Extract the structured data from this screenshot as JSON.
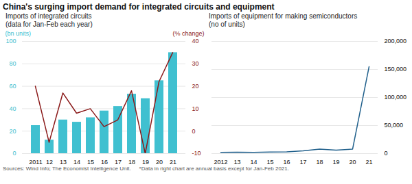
{
  "title": "China's surging import demand for integrated circuits and equipment",
  "annotations": [
    "Sources: Wind Info; The Economist Intelligence Unit.",
    "*Data in right chart are annual basis except for Jan-Feb 2021."
  ],
  "chart_data": [
    {
      "type": "bar",
      "title": "Imports of integrated circuits",
      "subtitle": "(data for Jan-Feb each year)",
      "categories": [
        "2011",
        "12",
        "13",
        "14",
        "15",
        "16",
        "17",
        "18",
        "19",
        "20",
        "21"
      ],
      "series": [
        {
          "type": "bar",
          "color": "#40C0D0",
          "values": [
            25,
            12,
            30,
            28,
            32,
            38,
            42,
            53,
            49,
            65,
            90
          ]
        },
        {
          "type": "line",
          "color": "#8B1A1A",
          "axis": "y2",
          "values": [
            20,
            -5,
            17,
            8,
            10,
            2,
            5,
            18,
            -10,
            22,
            35
          ]
        }
      ],
      "ylabel": "(bn units)",
      "y2label": "(% change)",
      "ylim": [
        0,
        100
      ],
      "yticks": [
        0,
        20,
        40,
        60,
        80,
        100
      ],
      "y2lim": [
        -10,
        40
      ],
      "y2ticks": [
        -10,
        0,
        10,
        20,
        30,
        40
      ],
      "grid": true
    },
    {
      "type": "line",
      "title": "Imports of equipment for making semiconductors",
      "subtitle": "(no of units)",
      "categories": [
        "2012",
        "13",
        "14",
        "15",
        "16",
        "17",
        "18",
        "19",
        "20",
        "21"
      ],
      "values": [
        2000,
        2500,
        2200,
        2800,
        3000,
        5000,
        8000,
        6000,
        8000,
        155000
      ],
      "color": "#1F5F8B",
      "ylim": [
        0,
        200000
      ],
      "yticks": [
        0,
        {
          "value": 50000,
          "label": "50,000"
        },
        {
          "value": 100000,
          "label": "100,000"
        },
        {
          "value": 150000,
          "label": "150,000"
        },
        {
          "value": 200000,
          "label": "200,000"
        }
      ],
      "grid": true
    }
  ]
}
